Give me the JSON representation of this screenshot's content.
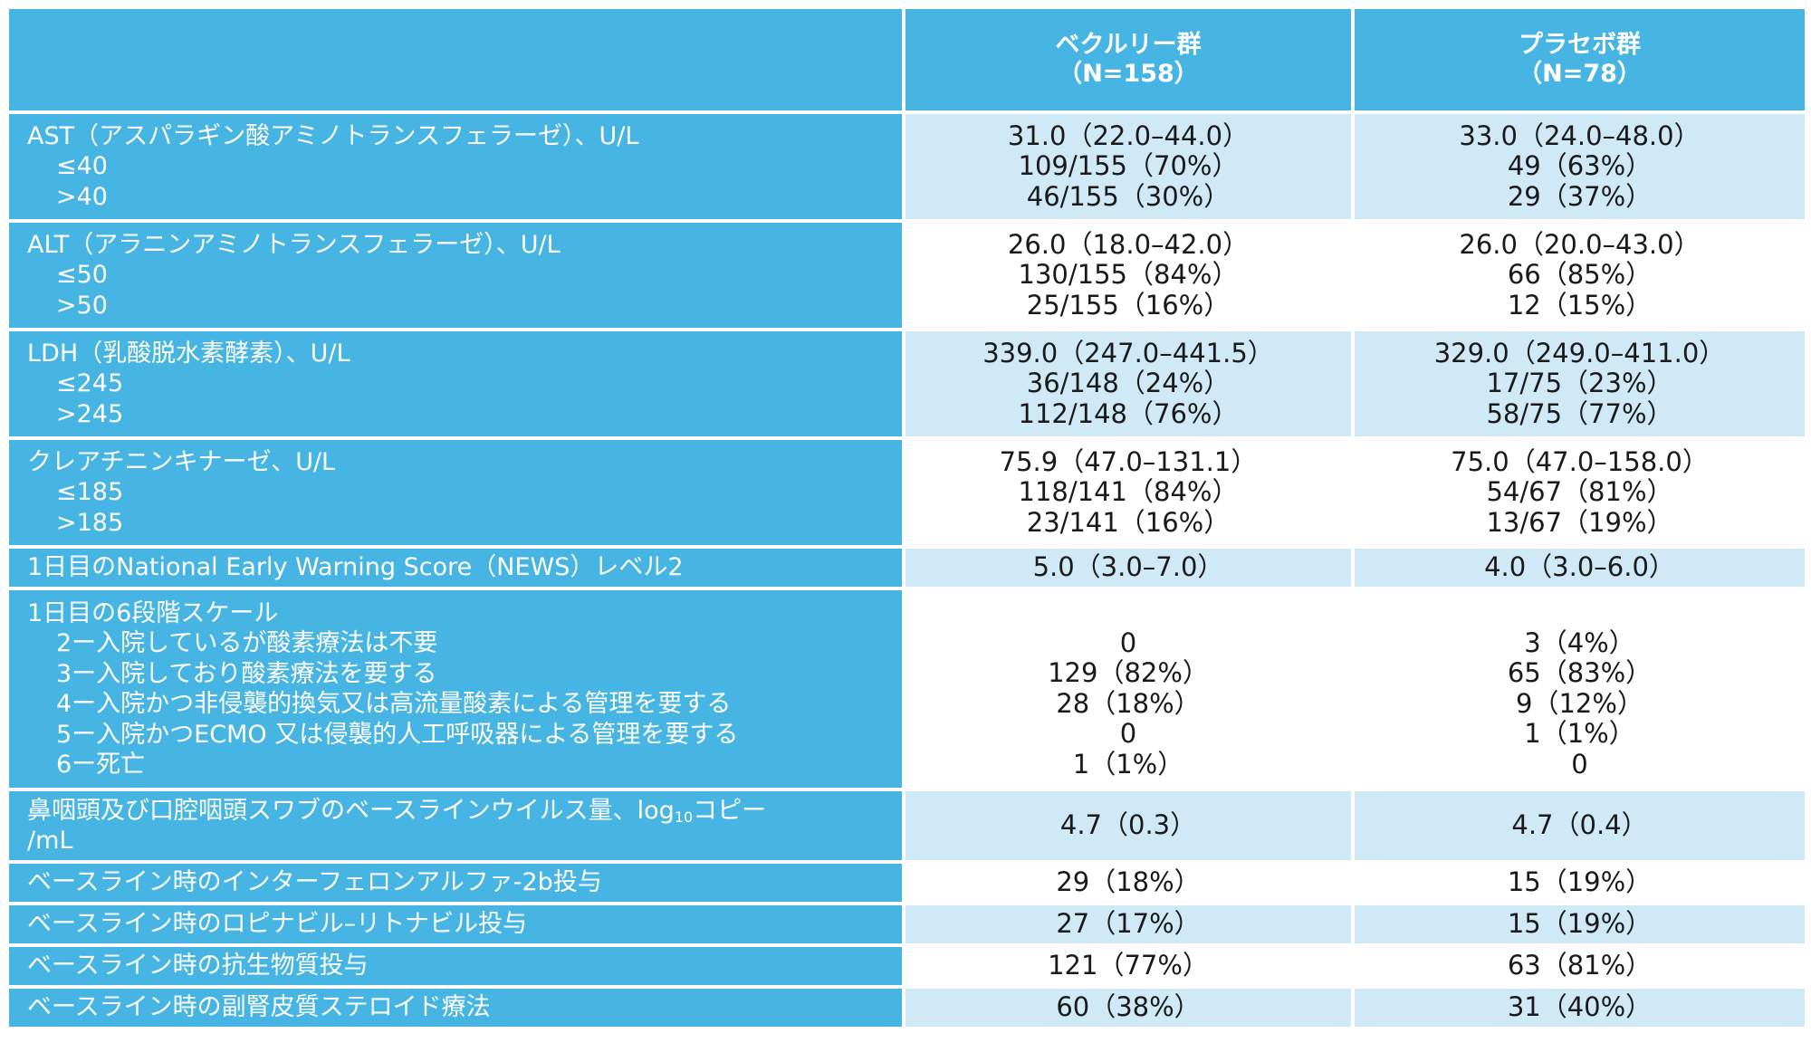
{
  "header": {
    "col1_name": "ベクルリー群",
    "col1_n": "（N=158）",
    "col2_name": "プラセボ群",
    "col2_n": "（N=78）"
  },
  "rows": [
    {
      "label": [
        "AST（アスパラギン酸アミノトランスフェラーゼ）、U/L",
        "≤40",
        ">40"
      ],
      "v1": [
        "31.0（22.0–44.0）",
        "109/155（70%）",
        "46/155（30%）"
      ],
      "v2": [
        "33.0（24.0–48.0）",
        "49（63%）",
        "29（37%）"
      ]
    },
    {
      "label": [
        "ALT（アラニンアミノトランスフェラーゼ）、U/L",
        "≤50",
        ">50"
      ],
      "v1": [
        "26.0（18.0–42.0）",
        "130/155（84%）",
        "25/155（16%）"
      ],
      "v2": [
        "26.0（20.0–43.0）",
        "66（85%）",
        "12（15%）"
      ]
    },
    {
      "label": [
        "LDH（乳酸脱水素酵素）、U/L",
        "≤245",
        ">245"
      ],
      "v1": [
        "339.0（247.0–441.5）",
        "36/148（24%）",
        "112/148（76%）"
      ],
      "v2": [
        "329.0（249.0–411.0）",
        "17/75（23%）",
        "58/75（77%）"
      ]
    },
    {
      "label": [
        "クレアチニンキナーゼ、U/L",
        "≤185",
        ">185"
      ],
      "v1": [
        "75.9（47.0–131.1）",
        "118/141（84%）",
        "23/141（16%）"
      ],
      "v2": [
        "75.0（47.0–158.0）",
        "54/67（81%）",
        "13/67（19%）"
      ]
    },
    {
      "label": [
        "1日目のNational Early Warning Score（NEWS）レベル2"
      ],
      "v1": [
        "5.0（3.0–7.0）"
      ],
      "v2": [
        "4.0（3.0–6.0）"
      ]
    },
    {
      "label": [
        "1日目の6段階スケール",
        "2ー入院しているが酸素療法は不要",
        "3ー入院しており酸素療法を要する",
        "4ー入院かつ非侵襲的換気又は高流量酸素による管理を要する",
        "5ー入院かつECMO 又は侵襲的人工呼吸器による管理を要する",
        "6ー死亡"
      ],
      "v1": [
        "0",
        "129（82%）",
        "28（18%）",
        "0",
        "1（1%）"
      ],
      "v2": [
        "3（4%）",
        "65（83%）",
        "9（12%）",
        "1（1%）",
        "0"
      ]
    },
    {
      "label_a": "鼻咽頭及び口腔咽頭スワブのベースラインウイルス量、log",
      "label_sub": "10",
      "label_b": "コピー",
      "label_c": "/mL",
      "v1": [
        "4.7（0.3）"
      ],
      "v2": [
        "4.7（0.4）"
      ]
    },
    {
      "label": [
        "ベースライン時のインターフェロンアルファ-2b投与"
      ],
      "v1": [
        "29（18%）"
      ],
      "v2": [
        "15（19%）"
      ]
    },
    {
      "label": [
        "ベースライン時のロピナビル–リトナビル投与"
      ],
      "v1": [
        "27（17%）"
      ],
      "v2": [
        "15（19%）"
      ]
    },
    {
      "label": [
        "ベースライン時の抗生物質投与"
      ],
      "v1": [
        "121（77%）"
      ],
      "v2": [
        "63（81%）"
      ]
    },
    {
      "label": [
        "ベースライン時の副腎皮質ステロイド療法"
      ],
      "v1": [
        "60（38%）"
      ],
      "v2": [
        "31（40%）"
      ]
    }
  ]
}
